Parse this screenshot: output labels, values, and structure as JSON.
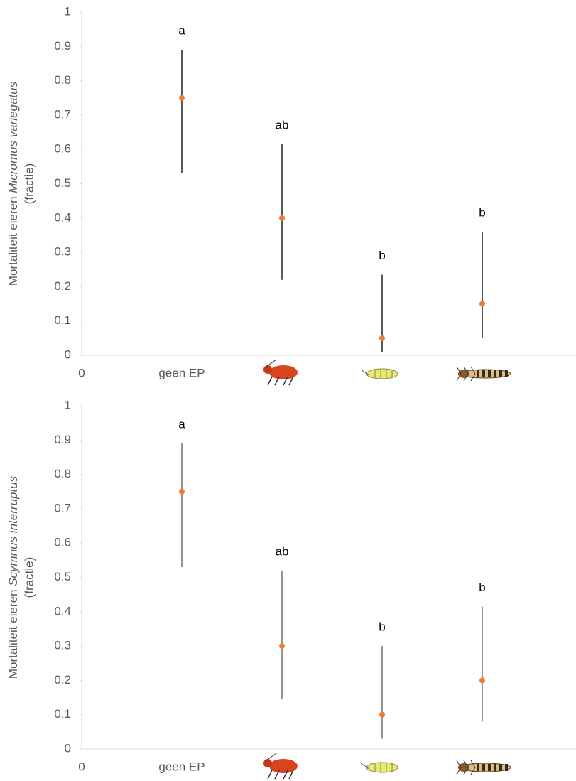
{
  "chart_data": [
    {
      "type": "dot-errorbar",
      "ylabel": "Mortaliteit eieren ",
      "ylabel_species": "Micromus variegatus",
      "ylabel_unit": "(fractie)",
      "categories": [
        "0",
        "geen EP",
        null,
        null,
        null
      ],
      "values": [
        null,
        0.75,
        0.4,
        0.05,
        0.15
      ],
      "low": [
        null,
        0.53,
        0.22,
        0.01,
        0.05
      ],
      "high": [
        null,
        0.89,
        0.615,
        0.235,
        0.36
      ],
      "annotations": [
        null,
        "a",
        "ab",
        "b",
        "b"
      ],
      "color": "#ed7d31",
      "errorbar_color": "#000000",
      "ylim": [
        0,
        1
      ],
      "yticks": [
        0,
        0.1,
        0.2,
        0.3,
        0.4,
        0.5,
        0.6,
        0.7,
        0.8,
        0.9,
        1
      ]
    },
    {
      "type": "dot-errorbar",
      "ylabel": "Mortaliteit eieren ",
      "ylabel_species": "Scymnus interruptus",
      "ylabel_unit": "(fractie)",
      "categories": [
        "0",
        "geen EP",
        null,
        null,
        null
      ],
      "values": [
        null,
        0.75,
        0.3,
        0.1,
        0.2
      ],
      "low": [
        null,
        0.53,
        0.145,
        0.03,
        0.08
      ],
      "high": [
        null,
        0.89,
        0.52,
        0.3,
        0.415
      ],
      "annotations": [
        null,
        "a",
        "ab",
        "b",
        "b"
      ],
      "color": "#ed7d31",
      "errorbar_color": "#5a5a5a",
      "ylim": [
        0,
        1
      ],
      "yticks": [
        0,
        0.1,
        0.2,
        0.3,
        0.4,
        0.5,
        0.6,
        0.7,
        0.8,
        0.9,
        1
      ]
    }
  ]
}
